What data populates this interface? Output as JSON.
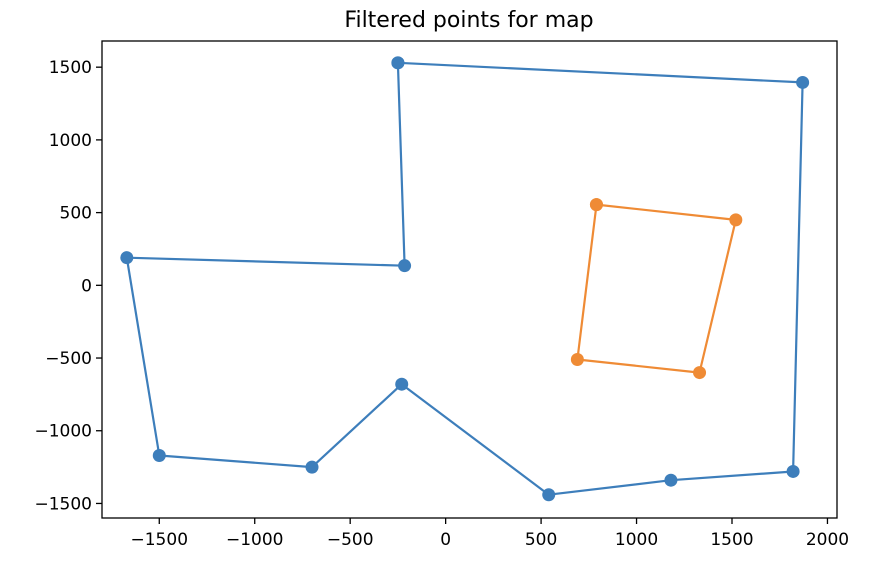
{
  "chart_data": {
    "type": "line",
    "title": "Filtered points for map",
    "xlabel": "",
    "ylabel": "",
    "xlim": [
      -1800,
      2050
    ],
    "ylim": [
      -1600,
      1680
    ],
    "grid": false,
    "markers": true,
    "x_ticks": [
      -1500,
      -1000,
      -500,
      0,
      500,
      1000,
      1500,
      2000
    ],
    "y_ticks": [
      -1500,
      -1000,
      -500,
      0,
      500,
      1000,
      1500
    ],
    "x_tick_labels": [
      "−1500",
      "−1000",
      "−500",
      "0",
      "500",
      "1000",
      "1500",
      "2000"
    ],
    "y_tick_labels": [
      "−1500",
      "−1000",
      "−500",
      "0",
      "500",
      "1000",
      "1500"
    ],
    "series": [
      {
        "color": "#3d7ebb",
        "points": [
          [
            -250,
            1530
          ],
          [
            1870,
            1395
          ],
          [
            1820,
            -1280
          ],
          [
            1180,
            -1340
          ],
          [
            540,
            -1440
          ],
          [
            -230,
            -680
          ],
          [
            -700,
            -1250
          ],
          [
            -1500,
            -1170
          ],
          [
            -1670,
            190
          ],
          [
            -215,
            135
          ],
          [
            -250,
            1530
          ]
        ]
      },
      {
        "color": "#ef8b35",
        "points": [
          [
            790,
            555
          ],
          [
            1520,
            450
          ],
          [
            1330,
            -600
          ],
          [
            690,
            -510
          ],
          [
            790,
            555
          ]
        ]
      }
    ]
  }
}
